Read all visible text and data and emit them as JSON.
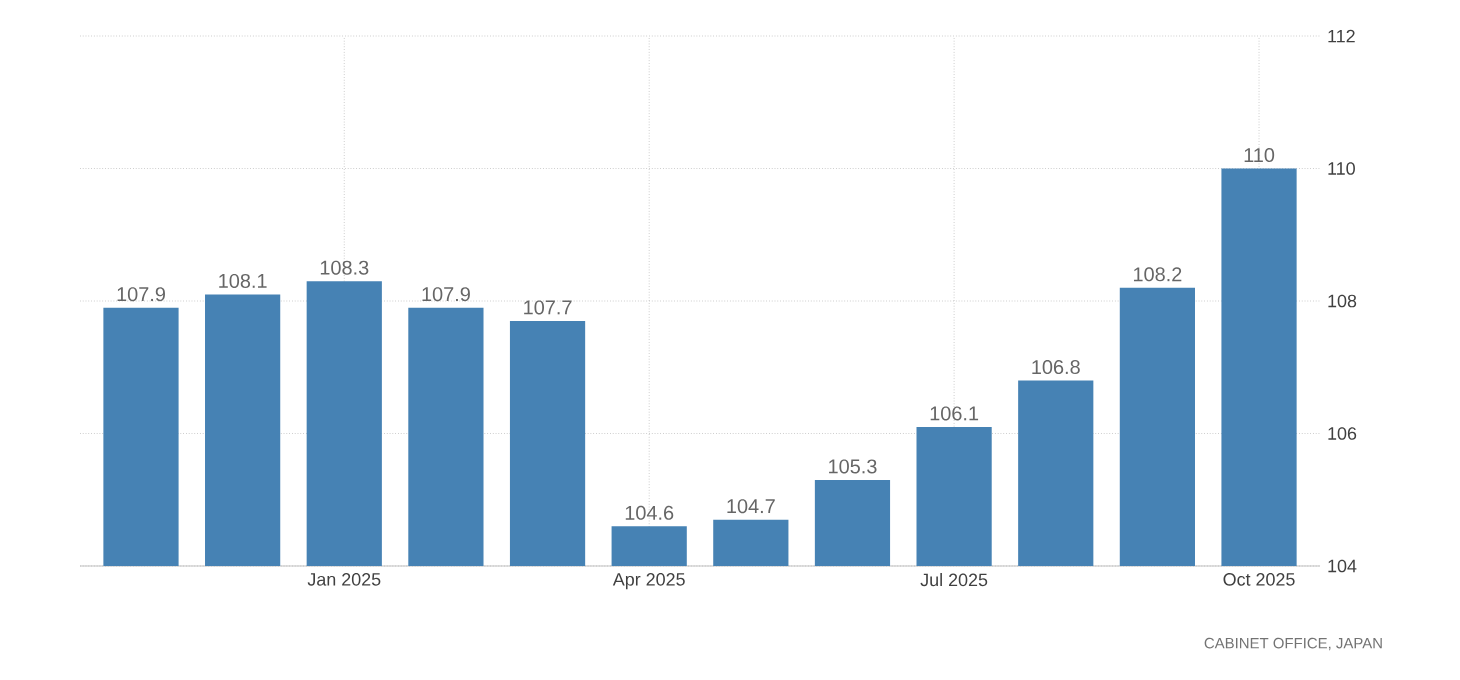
{
  "chart_data": {
    "type": "bar",
    "categories": [
      null,
      null,
      "Jan 2025",
      null,
      null,
      "Apr 2025",
      null,
      null,
      "Jul 2025",
      null,
      null,
      "Oct 2025"
    ],
    "values": [
      107.9,
      108.1,
      108.3,
      107.9,
      107.7,
      104.6,
      104.7,
      105.3,
      106.1,
      106.8,
      108.2,
      110
    ],
    "color": "#4682b4",
    "ylim": [
      104,
      112
    ],
    "yticks": [
      104,
      106,
      108,
      110,
      112
    ],
    "grid": true,
    "data_labels": true,
    "annotations": [
      "CABINET OFFICE, JAPAN"
    ]
  }
}
